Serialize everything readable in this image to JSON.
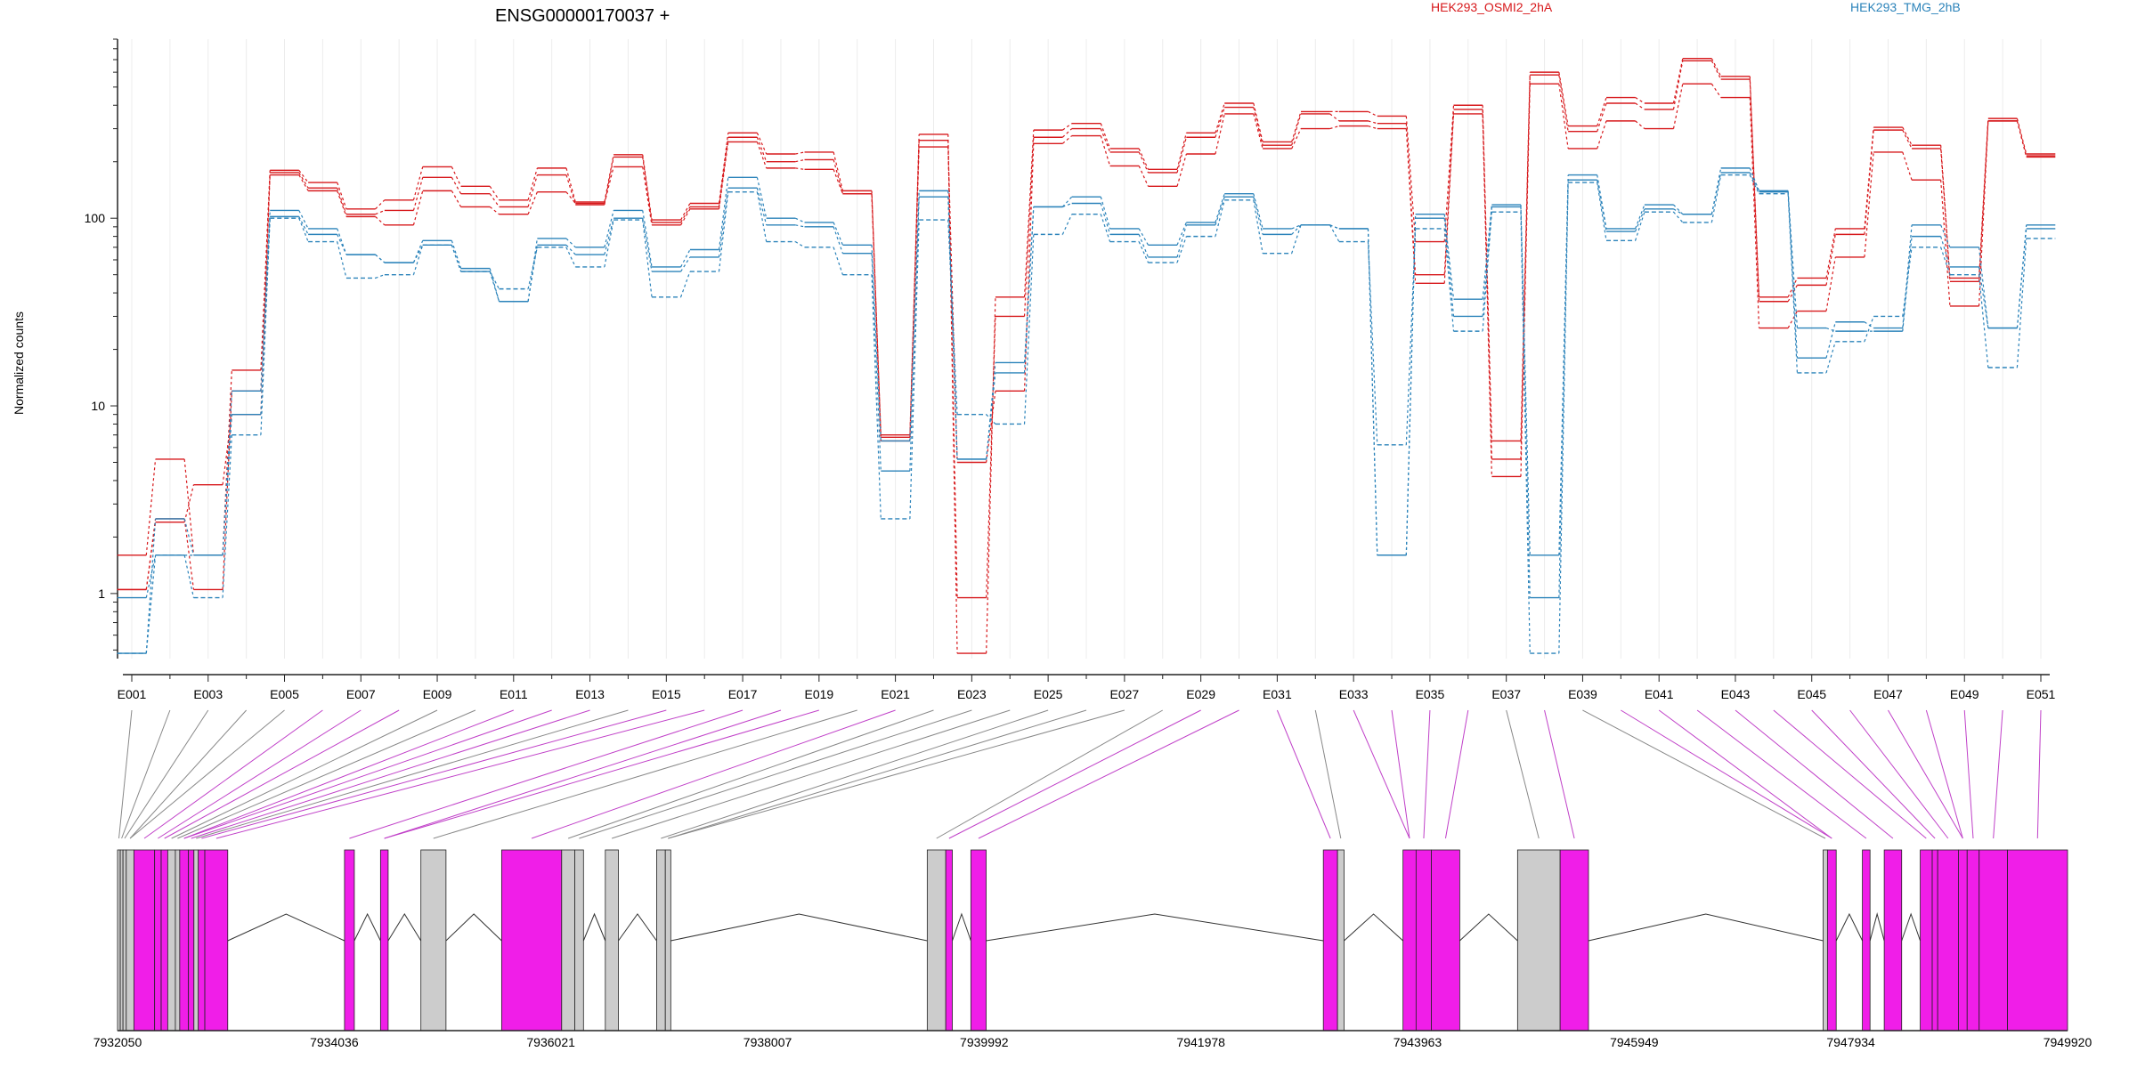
{
  "colors": {
    "cond1": "#d7191c",
    "cond2": "#2b83ba",
    "exon_gray": "#cccccc",
    "exon_magenta": "#f01ee8",
    "axis": "#222222",
    "connector_gray": "#888888",
    "connector_magenta": "#c040c8"
  },
  "chart_data": {
    "type": "line",
    "title": "ENSG00000170037 +",
    "ylabel": "Normalized counts",
    "y_scale": "log",
    "ylim": [
      0.45,
      900
    ],
    "yticks": [
      "1",
      "10",
      "100"
    ],
    "legend": [
      {
        "name": "HEK293_OSMI2_2hA",
        "color": "#d7191c"
      },
      {
        "name": "HEK293_TMG_2hB",
        "color": "#2b83ba"
      }
    ],
    "exon_tick_labels": [
      "E001",
      "E003",
      "E005",
      "E007",
      "E009",
      "E011",
      "E013",
      "E015",
      "E017",
      "E019",
      "E021",
      "E023",
      "E025",
      "E027",
      "E029",
      "E031",
      "E033",
      "E035",
      "E037",
      "E039",
      "E041",
      "E043",
      "E045",
      "E047",
      "E049",
      "E051"
    ],
    "exons": [
      "E001",
      "E002",
      "E003",
      "E004",
      "E005",
      "E006",
      "E007",
      "E008",
      "E009",
      "E010",
      "E011",
      "E012",
      "E013",
      "E014",
      "E015",
      "E016",
      "E017",
      "E018",
      "E019",
      "E020",
      "E021",
      "E022",
      "E023",
      "E024",
      "E025",
      "E026",
      "E027",
      "E028",
      "E029",
      "E030",
      "E031",
      "E032",
      "E033",
      "E034",
      "E035",
      "E036",
      "E037",
      "E038",
      "E039",
      "E040",
      "E041",
      "E042",
      "E043",
      "E044",
      "E045",
      "E046",
      "E047",
      "E048",
      "E049",
      "E050",
      "E051"
    ],
    "series": [
      {
        "group": "HEK293_OSMI2_2hA",
        "style": "solid",
        "values": [
          1.6,
          5.2,
          1.6,
          15.5,
          180,
          155,
          112,
          125,
          188,
          148,
          125,
          185,
          122,
          218,
          98,
          120,
          285,
          220,
          225,
          140,
          7,
          280,
          0.48,
          38,
          295,
          320,
          235,
          182,
          285,
          410,
          255,
          370,
          370,
          350,
          75,
          400,
          6.5,
          600,
          310,
          440,
          410,
          710,
          570,
          38,
          48,
          88,
          305,
          245,
          48,
          340,
          220
        ]
      },
      {
        "group": "HEK293_OSMI2_2hA",
        "style": "solid",
        "values": [
          1.05,
          2.5,
          1.05,
          12,
          175,
          145,
          105,
          110,
          165,
          135,
          115,
          170,
          118,
          212,
          95,
          115,
          270,
          200,
          205,
          135,
          6.8,
          260,
          0.95,
          30,
          270,
          300,
          225,
          175,
          270,
          390,
          245,
          360,
          330,
          320,
          50,
          380,
          5.2,
          580,
          290,
          410,
          380,
          690,
          550,
          36,
          44,
          82,
          295,
          235,
          46,
          330,
          215
        ]
      },
      {
        "group": "HEK293_OSMI2_2hA",
        "style": "solid",
        "values": [
          1.05,
          2.4,
          3.8,
          9,
          170,
          140,
          102,
          92,
          140,
          115,
          105,
          138,
          120,
          188,
          92,
          112,
          255,
          185,
          182,
          135,
          6.5,
          240,
          5,
          12,
          250,
          275,
          190,
          148,
          220,
          360,
          235,
          300,
          310,
          300,
          45,
          360,
          4.2,
          520,
          235,
          330,
          300,
          520,
          440,
          26,
          32,
          62,
          225,
          160,
          34,
          330,
          212
        ]
      },
      {
        "group": "HEK293_TMG_2hB",
        "style": "solid",
        "values": [
          0.48,
          2.5,
          1.6,
          12,
          110,
          88,
          64,
          58,
          76,
          54,
          36,
          78,
          70,
          110,
          55,
          68,
          165,
          100,
          95,
          72,
          6.5,
          140,
          5.2,
          17,
          115,
          130,
          88,
          72,
          95,
          135,
          88,
          92,
          88,
          1.6,
          105,
          37,
          118,
          1.6,
          170,
          88,
          118,
          105,
          185,
          140,
          18,
          28,
          26,
          92,
          70,
          26,
          92
        ]
      },
      {
        "group": "HEK293_TMG_2hB",
        "style": "solid",
        "values": [
          0.95,
          1.6,
          1.6,
          9,
          102,
          82,
          64,
          58,
          72,
          52,
          36,
          72,
          64,
          100,
          52,
          62,
          145,
          92,
          90,
          65,
          4.5,
          130,
          5.2,
          15,
          115,
          120,
          82,
          62,
          92,
          130,
          82,
          92,
          88,
          1.6,
          100,
          30,
          115,
          0.95,
          160,
          85,
          112,
          105,
          175,
          138,
          26,
          25,
          25,
          80,
          55,
          26,
          88
        ]
      },
      {
        "group": "HEK293_TMG_2hB",
        "style": "dashed",
        "values": [
          0.48,
          1.6,
          0.95,
          7,
          100,
          75,
          48,
          50,
          72,
          52,
          42,
          70,
          55,
          98,
          38,
          52,
          138,
          75,
          70,
          50,
          2.5,
          98,
          9,
          8,
          82,
          105,
          75,
          58,
          80,
          125,
          65,
          92,
          75,
          6.2,
          88,
          25,
          108,
          0.48,
          155,
          76,
          108,
          95,
          170,
          135,
          15,
          22,
          30,
          70,
          50,
          16,
          78
        ]
      }
    ],
    "genomic_tick_labels": [
      "7932050",
      "7934036",
      "7936021",
      "7938007",
      "7939992",
      "7941978",
      "7943963",
      "7945949",
      "7947934",
      "7949920"
    ],
    "genomic_range": [
      7932050,
      7949920
    ],
    "transcript_exons": [
      {
        "start": 7932050,
        "end": 7932075,
        "type": "gray"
      },
      {
        "start": 7932075,
        "end": 7932100,
        "type": "gray"
      },
      {
        "start": 7932100,
        "end": 7932130,
        "type": "gray"
      },
      {
        "start": 7932130,
        "end": 7932200,
        "type": "gray"
      },
      {
        "start": 7932200,
        "end": 7932390,
        "type": "magenta"
      },
      {
        "start": 7932390,
        "end": 7932450,
        "type": "magenta"
      },
      {
        "start": 7932450,
        "end": 7932510,
        "type": "magenta"
      },
      {
        "start": 7932510,
        "end": 7932580,
        "type": "gray"
      },
      {
        "start": 7932580,
        "end": 7932620,
        "type": "gray"
      },
      {
        "start": 7932620,
        "end": 7932700,
        "type": "magenta"
      },
      {
        "start": 7932700,
        "end": 7932750,
        "type": "magenta"
      },
      {
        "start": 7932750,
        "end": 7932790,
        "type": "gray"
      },
      {
        "start": 7932790,
        "end": 7932850,
        "type": "magenta"
      },
      {
        "start": 7932850,
        "end": 7933060,
        "type": "magenta"
      },
      {
        "start": 7934130,
        "end": 7934220,
        "type": "magenta"
      },
      {
        "start": 7934460,
        "end": 7934530,
        "type": "magenta"
      },
      {
        "start": 7934830,
        "end": 7935060,
        "type": "gray"
      },
      {
        "start": 7935570,
        "end": 7936120,
        "type": "magenta"
      },
      {
        "start": 7936120,
        "end": 7936240,
        "type": "gray"
      },
      {
        "start": 7936240,
        "end": 7936320,
        "type": "gray"
      },
      {
        "start": 7936520,
        "end": 7936640,
        "type": "gray"
      },
      {
        "start": 7936990,
        "end": 7937070,
        "type": "gray"
      },
      {
        "start": 7937070,
        "end": 7937120,
        "type": "gray"
      },
      {
        "start": 7939470,
        "end": 7939640,
        "type": "gray"
      },
      {
        "start": 7939640,
        "end": 7939700,
        "type": "magenta"
      },
      {
        "start": 7939870,
        "end": 7940010,
        "type": "magenta"
      },
      {
        "start": 7943100,
        "end": 7943230,
        "type": "magenta"
      },
      {
        "start": 7943230,
        "end": 7943290,
        "type": "gray"
      },
      {
        "start": 7943830,
        "end": 7943950,
        "type": "magenta"
      },
      {
        "start": 7943950,
        "end": 7944090,
        "type": "magenta"
      },
      {
        "start": 7944090,
        "end": 7944350,
        "type": "magenta"
      },
      {
        "start": 7944880,
        "end": 7945270,
        "type": "gray"
      },
      {
        "start": 7945270,
        "end": 7945530,
        "type": "magenta"
      },
      {
        "start": 7947680,
        "end": 7947720,
        "type": "gray"
      },
      {
        "start": 7947720,
        "end": 7947800,
        "type": "magenta"
      },
      {
        "start": 7948040,
        "end": 7948110,
        "type": "magenta"
      },
      {
        "start": 7948240,
        "end": 7948400,
        "type": "magenta"
      },
      {
        "start": 7948570,
        "end": 7948680,
        "type": "magenta"
      },
      {
        "start": 7948680,
        "end": 7948730,
        "type": "magenta"
      },
      {
        "start": 7948730,
        "end": 7948920,
        "type": "magenta"
      },
      {
        "start": 7948920,
        "end": 7949000,
        "type": "magenta"
      },
      {
        "start": 7949000,
        "end": 7949110,
        "type": "magenta"
      },
      {
        "start": 7949110,
        "end": 7949370,
        "type": "magenta"
      },
      {
        "start": 7949370,
        "end": 7949920,
        "type": "magenta"
      }
    ]
  }
}
